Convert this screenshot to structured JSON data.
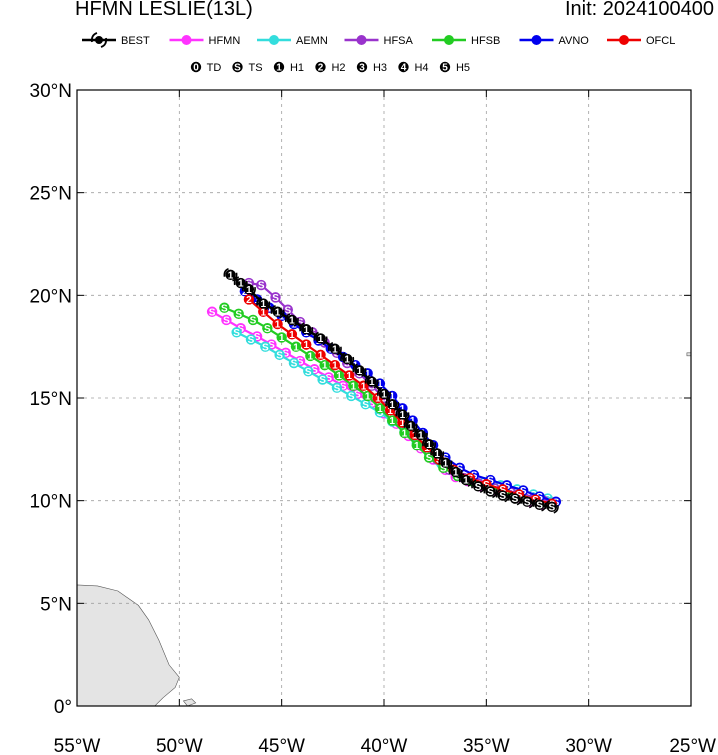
{
  "header": {
    "title": "HFMN LESLIE(13L)",
    "init": "Init: 2024100400"
  },
  "colors": {
    "BEST": "#000000",
    "HFMN": "#ff33ff",
    "AEMN": "#33dddd",
    "HFSA": "#9933cc",
    "HFSB": "#22cc22",
    "AVNO": "#0000ee",
    "OFCL": "#ee0000",
    "land": "#e4e4e4",
    "grid": "#a0a0a0"
  },
  "legend": {
    "models": [
      "BEST",
      "HFMN",
      "AEMN",
      "HFSA",
      "HFSB",
      "AVNO",
      "OFCL"
    ],
    "intensity": [
      {
        "symbol": "0",
        "label": "TD"
      },
      {
        "symbol": "S",
        "label": "TS"
      },
      {
        "symbol": "1",
        "label": "H1"
      },
      {
        "symbol": "2",
        "label": "H2"
      },
      {
        "symbol": "3",
        "label": "H3"
      },
      {
        "symbol": "4",
        "label": "H4"
      },
      {
        "symbol": "5",
        "label": "H5"
      }
    ]
  },
  "chart_data": {
    "type": "line",
    "xlabel": "",
    "ylabel": "",
    "xlim": [
      -55,
      -25
    ],
    "ylim": [
      0,
      30
    ],
    "x_ticks": [
      "55°W",
      "50°W",
      "45°W",
      "40°W",
      "35°W",
      "30°W",
      "25°W"
    ],
    "y_ticks": [
      "0°",
      "5°N",
      "10°N",
      "15°N",
      "20°N",
      "25°N",
      "30°N"
    ],
    "grid": true,
    "series": [
      {
        "name": "HFMN",
        "lon": [
          -32.3,
          -32.9,
          -33.5,
          -34.1,
          -34.7,
          -35.3,
          -35.9,
          -36.5,
          -37.0,
          -37.6,
          -38.2,
          -38.8,
          -39.4,
          -40.0,
          -40.6,
          -41.3,
          -42.0,
          -42.7,
          -43.4,
          -44.1,
          -44.8,
          -45.5,
          -46.2,
          -47.0,
          -47.7,
          -48.4
        ],
        "lat": [
          9.8,
          9.95,
          10.15,
          10.35,
          10.5,
          10.7,
          10.95,
          11.15,
          11.5,
          12.0,
          12.55,
          13.15,
          13.75,
          14.25,
          14.75,
          15.2,
          15.6,
          16.0,
          16.4,
          16.8,
          17.2,
          17.6,
          18.0,
          18.4,
          18.8,
          19.2
        ],
        "sym": [
          "S",
          "S",
          "S",
          "S",
          "S",
          "S",
          "S",
          "S",
          "S",
          "S",
          "S",
          "S",
          "S",
          "S",
          "S",
          "S",
          "S",
          "S",
          "S",
          "S",
          "S",
          "S",
          "S",
          "S",
          "S",
          "S"
        ]
      },
      {
        "name": "AEMN",
        "lon": [
          -32.0,
          -32.7,
          -33.5,
          -34.3,
          -35.1,
          -35.8,
          -36.5,
          -37.2,
          -37.8,
          -38.4,
          -39.0,
          -39.6,
          -40.2,
          -40.9,
          -41.6,
          -42.3,
          -43.0,
          -43.7,
          -44.4,
          -45.1,
          -45.8,
          -46.5,
          -47.2
        ],
        "lat": [
          10.1,
          10.3,
          10.55,
          10.75,
          10.9,
          11.1,
          11.4,
          11.8,
          12.3,
          12.8,
          13.35,
          13.85,
          14.3,
          14.7,
          15.1,
          15.5,
          15.9,
          16.3,
          16.7,
          17.1,
          17.5,
          17.85,
          18.2
        ],
        "sym": [
          "S",
          "S",
          "S",
          "S",
          "S",
          "S",
          "S",
          "S",
          "S",
          "S",
          "S",
          "S",
          "S",
          "S",
          "S",
          "S",
          "S",
          "S",
          "S",
          "S",
          "S",
          "S",
          "S"
        ]
      },
      {
        "name": "HFSA",
        "lon": [
          -32.2,
          -33.0,
          -33.8,
          -34.6,
          -35.4,
          -36.1,
          -36.8,
          -37.4,
          -38.0,
          -38.5,
          -39.0,
          -39.5,
          -40.0,
          -40.6,
          -41.2,
          -41.8,
          -42.3,
          -42.9,
          -43.5,
          -44.1,
          -44.7,
          -45.3,
          -46.0,
          -46.6
        ],
        "lat": [
          10.0,
          10.2,
          10.4,
          10.6,
          10.85,
          11.1,
          11.5,
          12.0,
          12.6,
          13.2,
          13.8,
          14.4,
          15.0,
          15.6,
          16.2,
          16.7,
          17.2,
          17.7,
          18.2,
          18.7,
          19.3,
          19.9,
          20.5,
          20.6
        ],
        "sym": [
          "S",
          "S",
          "S",
          "S",
          "S",
          "S",
          "S",
          "S",
          "S",
          "S",
          "S",
          "S",
          "S",
          "S",
          "S",
          "S",
          "S",
          "S",
          "S",
          "S",
          "S",
          "S",
          "S",
          "S"
        ]
      },
      {
        "name": "HFSB",
        "lon": [
          -32.5,
          -33.3,
          -34.1,
          -34.9,
          -35.7,
          -36.4,
          -37.1,
          -37.8,
          -38.4,
          -39.0,
          -39.6,
          -40.2,
          -40.8,
          -41.5,
          -42.2,
          -42.9,
          -43.6,
          -44.3,
          -45.0,
          -45.7,
          -46.4,
          -47.1,
          -47.8
        ],
        "lat": [
          10.0,
          10.2,
          10.45,
          10.7,
          10.95,
          11.2,
          11.6,
          12.1,
          12.7,
          13.3,
          13.9,
          14.5,
          15.1,
          15.6,
          16.1,
          16.6,
          17.05,
          17.5,
          17.95,
          18.4,
          18.8,
          19.1,
          19.4
        ],
        "sym": [
          "S",
          "S",
          "S",
          "S",
          "S",
          "S",
          "S",
          "S",
          "1",
          "1",
          "1",
          "1",
          "1",
          "1",
          "1",
          "1",
          "1",
          "1",
          "1",
          "S",
          "S",
          "S",
          "S"
        ]
      },
      {
        "name": "AVNO",
        "lon": [
          -31.6,
          -32.4,
          -33.2,
          -34.0,
          -34.8,
          -35.6,
          -36.3,
          -37.0,
          -37.6,
          -38.1,
          -38.6,
          -39.1,
          -39.6,
          -40.2,
          -40.8,
          -41.4,
          -42.0,
          -42.6,
          -43.2,
          -43.8,
          -44.4,
          -45.0,
          -45.6,
          -46.2,
          -46.8
        ],
        "lat": [
          9.95,
          10.2,
          10.5,
          10.75,
          11.0,
          11.25,
          11.6,
          12.1,
          12.7,
          13.3,
          13.9,
          14.5,
          15.1,
          15.7,
          16.2,
          16.6,
          17.0,
          17.4,
          17.8,
          18.2,
          18.6,
          19.0,
          19.4,
          19.8,
          20.2
        ],
        "sym": [
          "S",
          "S",
          "S",
          "S",
          "S",
          "S",
          "S",
          "S",
          "1",
          "1",
          "1",
          "1",
          "1",
          "1",
          "1",
          "1",
          "1",
          "1",
          "1",
          "1",
          "1",
          "1",
          "1",
          "1",
          "2"
        ]
      },
      {
        "name": "OFCL",
        "lon": [
          -31.8,
          -32.6,
          -33.4,
          -34.2,
          -35.0,
          -35.8,
          -36.6,
          -37.3,
          -37.9,
          -38.5,
          -39.1,
          -39.7,
          -40.3,
          -41.0,
          -41.7,
          -42.4,
          -43.1,
          -43.8,
          -44.5,
          -45.2,
          -45.9,
          -46.6
        ],
        "lat": [
          9.85,
          10.05,
          10.3,
          10.55,
          10.8,
          11.1,
          11.5,
          12.0,
          12.6,
          13.2,
          13.8,
          14.4,
          15.0,
          15.6,
          16.1,
          16.6,
          17.1,
          17.6,
          18.1,
          18.6,
          19.2,
          19.8
        ],
        "sym": [
          "S",
          "S",
          "S",
          "S",
          "S",
          "S",
          "S",
          "S",
          "1",
          "1",
          "1",
          "1",
          "1",
          "1",
          "1",
          "1",
          "1",
          "1",
          "1",
          "1",
          "1",
          "2"
        ]
      },
      {
        "name": "BEST",
        "lon": [
          -31.8,
          -32.4,
          -33.0,
          -33.6,
          -34.2,
          -34.8,
          -35.4,
          -36.0,
          -36.5,
          -37.0,
          -37.4,
          -37.8,
          -38.2,
          -38.7,
          -39.1,
          -39.6,
          -40.0,
          -40.6,
          -41.2,
          -41.8,
          -42.4,
          -43.1,
          -43.8,
          -44.5,
          -45.2,
          -45.9,
          -46.6,
          -47.0,
          -47.5
        ],
        "lat": [
          9.7,
          9.8,
          9.95,
          10.1,
          10.25,
          10.45,
          10.7,
          11.0,
          11.4,
          11.85,
          12.3,
          12.75,
          13.2,
          13.65,
          14.2,
          14.7,
          15.2,
          15.8,
          16.35,
          16.9,
          17.4,
          17.9,
          18.35,
          18.8,
          19.2,
          19.6,
          20.3,
          20.6,
          21.0
        ],
        "sym": [
          "S",
          "S",
          "S",
          "S",
          "S",
          "S",
          "S",
          "1",
          "1",
          "1",
          "1",
          "1",
          "1",
          "1",
          "1",
          "1",
          "1",
          "1",
          "1",
          "1",
          "1",
          "1",
          "1",
          "1",
          "1",
          "1",
          "1",
          "1",
          "1"
        ]
      }
    ]
  }
}
